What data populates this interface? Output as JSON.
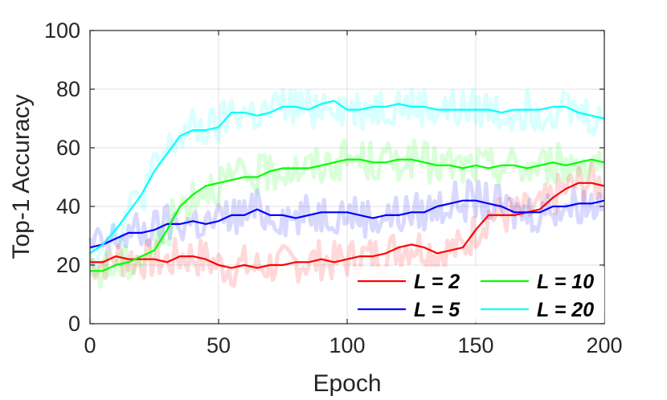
{
  "chart_data": {
    "type": "line",
    "xlabel": "Epoch",
    "ylabel": "Top-1 Accuracy",
    "xlim": [
      0,
      200
    ],
    "ylim": [
      0,
      100
    ],
    "xticks": [
      "0",
      "50",
      "100",
      "150",
      "200"
    ],
    "yticks": [
      "0",
      "20",
      "40",
      "60",
      "80",
      "100"
    ],
    "grid": true,
    "legend_position": "bottom-right",
    "x": [
      0,
      5,
      10,
      15,
      20,
      25,
      30,
      35,
      40,
      45,
      50,
      55,
      60,
      65,
      70,
      75,
      80,
      85,
      90,
      95,
      100,
      105,
      110,
      115,
      120,
      125,
      130,
      135,
      140,
      145,
      150,
      155,
      160,
      165,
      170,
      175,
      180,
      185,
      190,
      195,
      200
    ],
    "series": [
      {
        "name": "L = 2",
        "color": "#ff0000",
        "values": [
          21,
          21,
          23,
          22,
          22,
          22,
          21,
          23,
          23,
          22,
          20,
          19,
          20,
          19,
          20,
          20,
          21,
          21,
          22,
          21,
          22,
          23,
          23,
          24,
          26,
          27,
          26,
          24,
          25,
          26,
          32,
          37,
          37,
          37,
          38,
          39,
          43,
          46,
          48,
          48,
          47
        ]
      },
      {
        "name": "L = 5",
        "color": "#0000ff",
        "values": [
          26,
          27,
          29,
          31,
          31,
          32,
          34,
          34,
          35,
          34,
          35,
          37,
          37,
          39,
          37,
          37,
          36,
          37,
          38,
          38,
          38,
          37,
          36,
          37,
          37,
          38,
          38,
          40,
          41,
          42,
          42,
          41,
          40,
          38,
          38,
          38,
          40,
          40,
          41,
          41,
          42
        ]
      },
      {
        "name": "L = 10",
        "color": "#00ff00",
        "values": [
          18,
          18,
          20,
          21,
          23,
          25,
          32,
          40,
          44,
          47,
          48,
          49,
          50,
          50,
          52,
          53,
          53,
          53,
          54,
          55,
          56,
          56,
          55,
          55,
          56,
          56,
          55,
          54,
          54,
          53,
          54,
          53,
          54,
          54,
          53,
          54,
          55,
          54,
          55,
          56,
          55
        ]
      },
      {
        "name": "L = 20",
        "color": "#00ffff",
        "values": [
          24,
          27,
          32,
          38,
          44,
          52,
          58,
          64,
          66,
          66,
          67,
          72,
          72,
          71,
          72,
          74,
          74,
          73,
          75,
          76,
          73,
          73,
          74,
          74,
          75,
          74,
          74,
          73,
          73,
          73,
          73,
          73,
          72,
          73,
          73,
          73,
          74,
          74,
          72,
          71,
          70
        ]
      }
    ]
  }
}
